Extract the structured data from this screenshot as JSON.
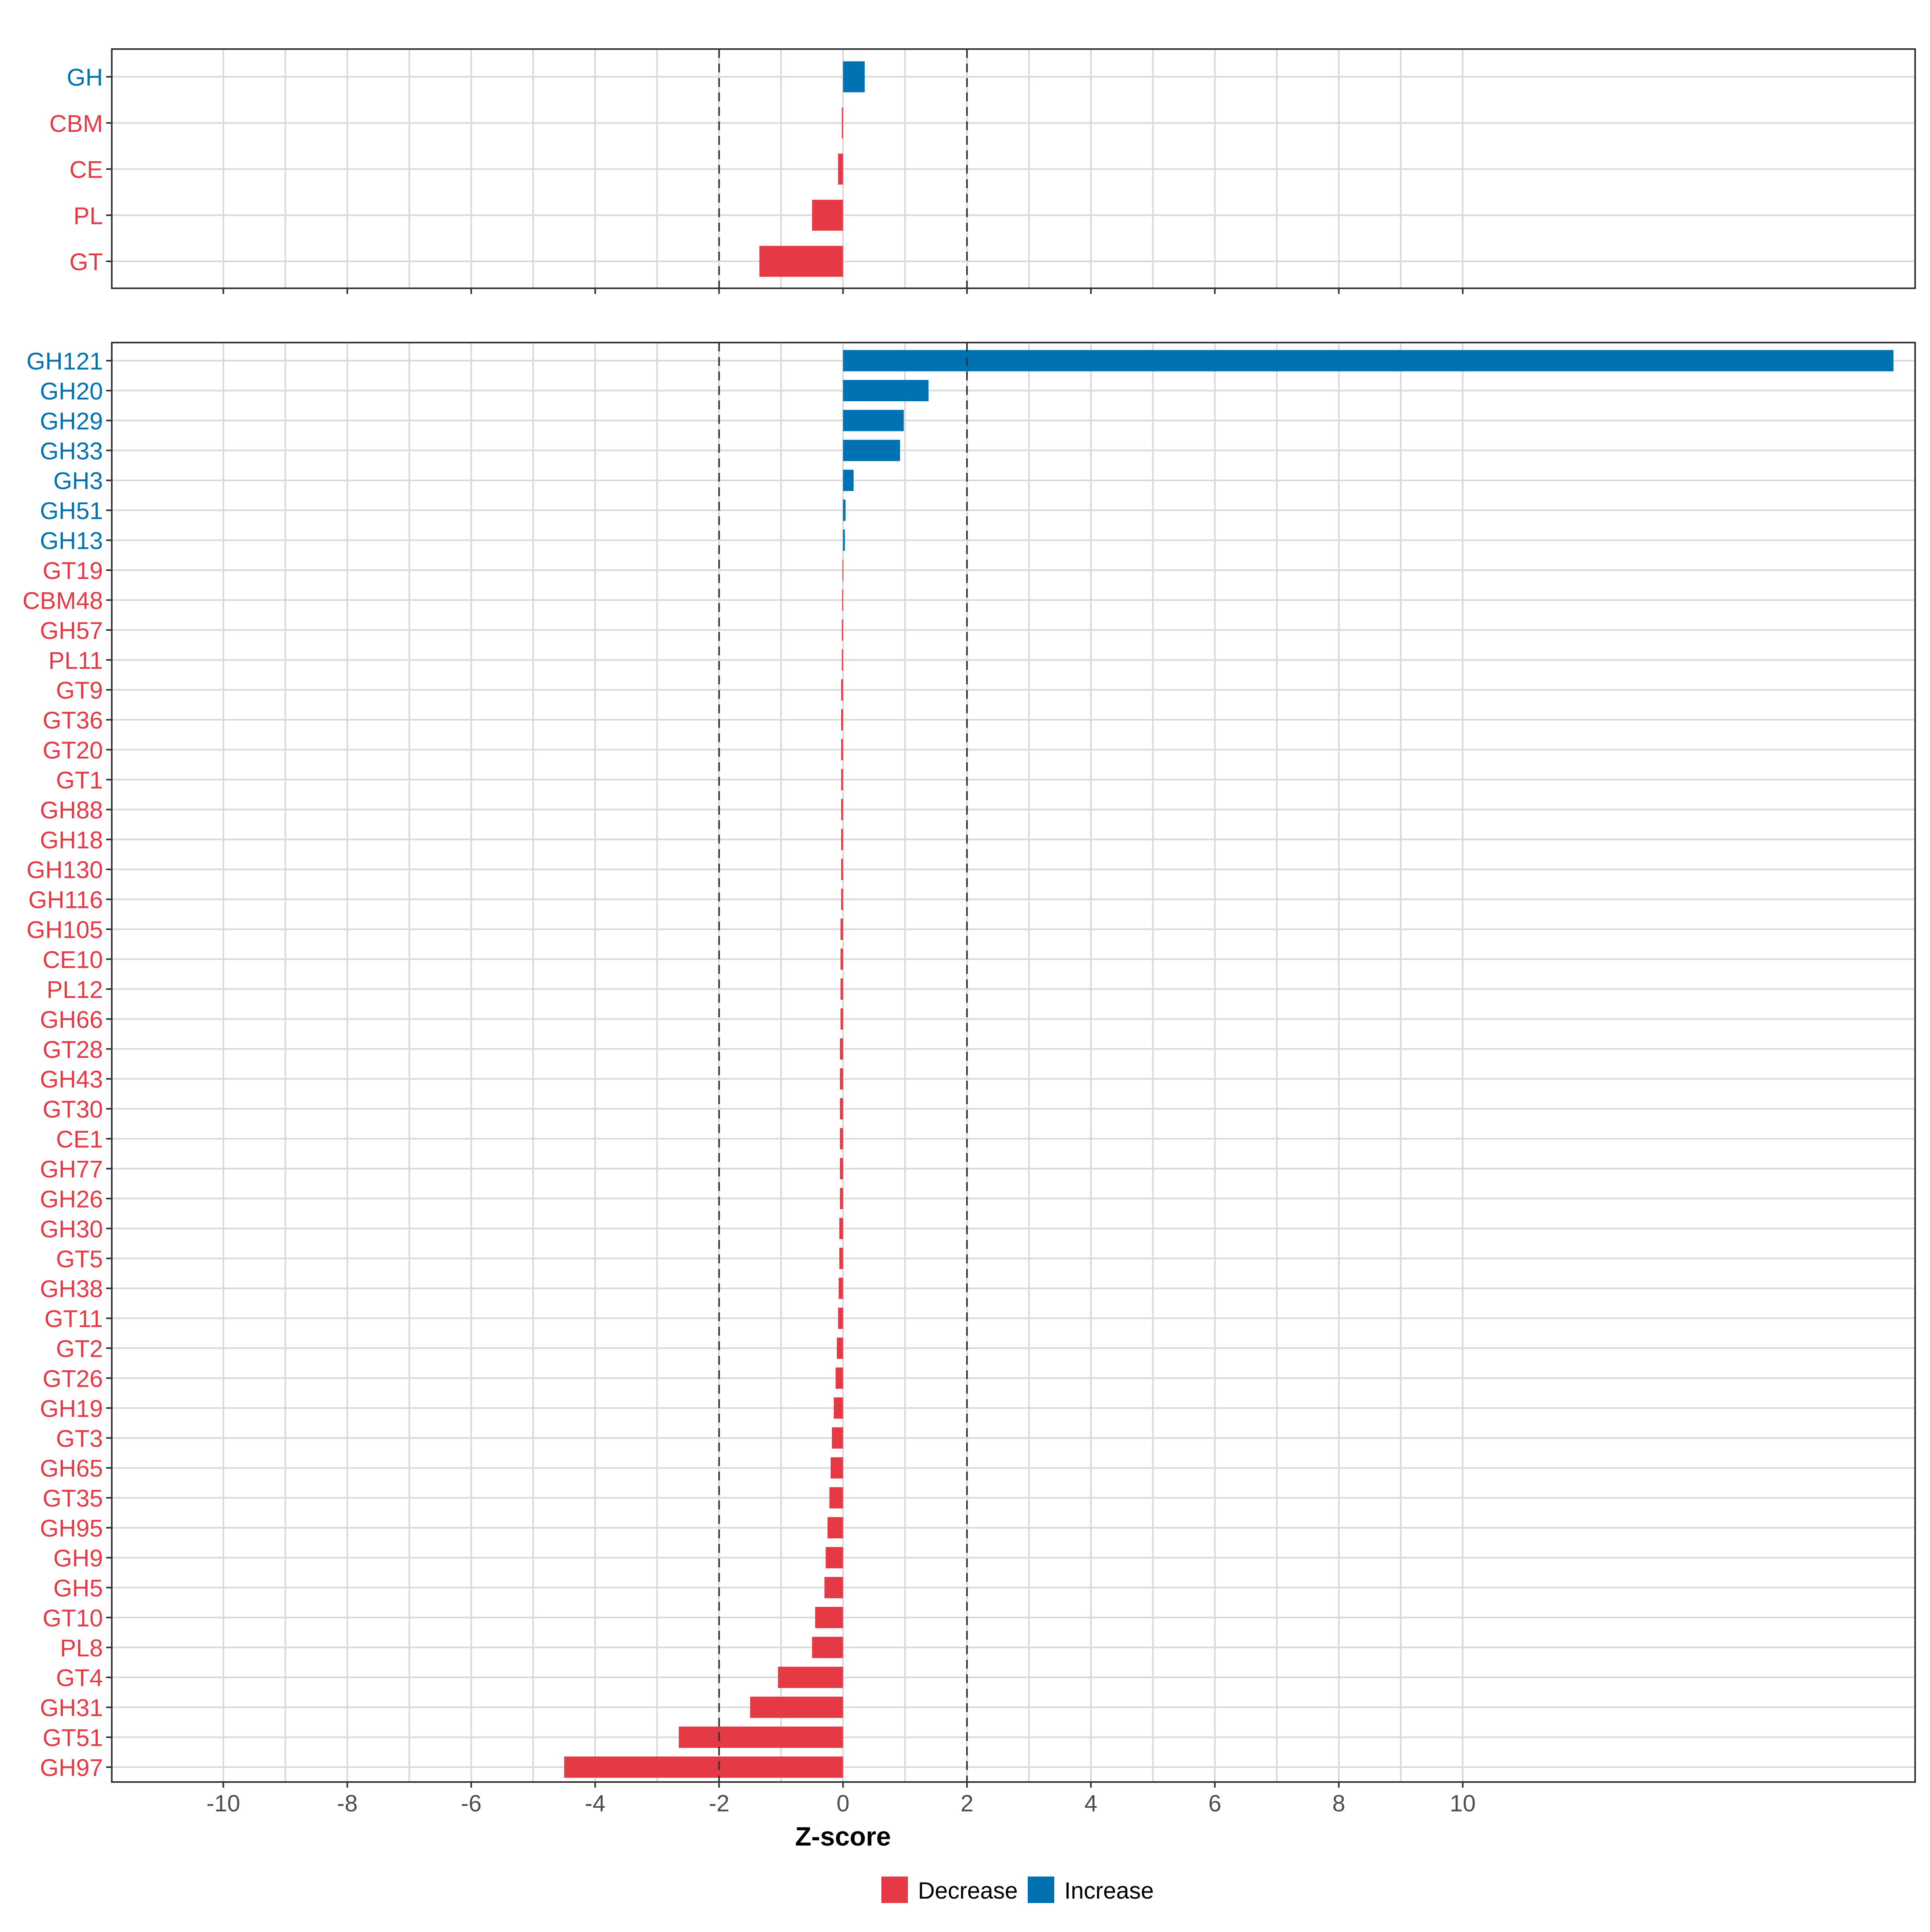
{
  "colors": {
    "decrease": "#E63946",
    "increase": "#0072B2",
    "grid": "#D9D9D9",
    "panel_border": "#333333",
    "threshold_line": "#333333",
    "tick_text": "#4D4D4D"
  },
  "chart_data": [
    {
      "type": "bar",
      "orientation": "horizontal",
      "panel": "top",
      "categories": [
        "GH",
        "CBM",
        "CE",
        "PL",
        "GT"
      ],
      "values": [
        0.35,
        -0.02,
        -0.08,
        -0.5,
        -1.35
      ],
      "direction": [
        "Increase",
        "Decrease",
        "Decrease",
        "Decrease",
        "Decrease"
      ],
      "xlim": [
        -11.8,
        17.3
      ],
      "thresholds": [
        -2,
        2
      ],
      "grid": true
    },
    {
      "type": "bar",
      "orientation": "horizontal",
      "panel": "bottom",
      "categories": [
        "GH121",
        "GH20",
        "GH29",
        "GH33",
        "GH3",
        "GH51",
        "GH13",
        "GT19",
        "CBM48",
        "GH57",
        "PL11",
        "GT9",
        "GT36",
        "GT20",
        "GT1",
        "GH88",
        "GH18",
        "GH130",
        "GH116",
        "GH105",
        "CE10",
        "PL12",
        "GH66",
        "GT28",
        "GH43",
        "GT30",
        "CE1",
        "GH77",
        "GH26",
        "GH30",
        "GT5",
        "GH38",
        "GT11",
        "GT2",
        "GT26",
        "GH19",
        "GT3",
        "GH65",
        "GT35",
        "GH95",
        "GH9",
        "GH5",
        "GT10",
        "PL8",
        "GT4",
        "GH31",
        "GT51",
        "GH97"
      ],
      "values": [
        16.95,
        1.38,
        0.98,
        0.92,
        0.17,
        0.04,
        0.03,
        -0.01,
        -0.015,
        -0.02,
        -0.02,
        -0.03,
        -0.03,
        -0.03,
        -0.03,
        -0.03,
        -0.03,
        -0.03,
        -0.03,
        -0.04,
        -0.04,
        -0.04,
        -0.04,
        -0.05,
        -0.05,
        -0.05,
        -0.05,
        -0.05,
        -0.05,
        -0.06,
        -0.06,
        -0.07,
        -0.08,
        -0.1,
        -0.12,
        -0.15,
        -0.18,
        -0.2,
        -0.22,
        -0.25,
        -0.28,
        -0.3,
        -0.45,
        -0.5,
        -1.05,
        -1.5,
        -2.65,
        -4.5
      ],
      "direction": [
        "Increase",
        "Increase",
        "Increase",
        "Increase",
        "Increase",
        "Increase",
        "Increase",
        "Decrease",
        "Decrease",
        "Decrease",
        "Decrease",
        "Decrease",
        "Decrease",
        "Decrease",
        "Decrease",
        "Decrease",
        "Decrease",
        "Decrease",
        "Decrease",
        "Decrease",
        "Decrease",
        "Decrease",
        "Decrease",
        "Decrease",
        "Decrease",
        "Decrease",
        "Decrease",
        "Decrease",
        "Decrease",
        "Decrease",
        "Decrease",
        "Decrease",
        "Decrease",
        "Decrease",
        "Decrease",
        "Decrease",
        "Decrease",
        "Decrease",
        "Decrease",
        "Decrease",
        "Decrease",
        "Decrease",
        "Decrease",
        "Decrease",
        "Decrease",
        "Decrease",
        "Decrease",
        "Decrease"
      ],
      "xlim": [
        -11.8,
        17.3
      ],
      "xticks": [
        -10,
        -8,
        -6,
        -4,
        -2,
        0,
        2,
        4,
        6,
        8,
        10
      ],
      "xtick_labels": [
        "-10",
        "-8",
        "-6",
        "-4",
        "-2",
        "0",
        "2",
        "4",
        "6",
        "8",
        "10"
      ],
      "thresholds": [
        -2,
        2
      ],
      "xlabel": "Z-score",
      "grid": true
    }
  ],
  "legend": {
    "position": "bottom",
    "items": [
      {
        "label": "Decrease",
        "color": "#E63946"
      },
      {
        "label": "Increase",
        "color": "#0072B2"
      }
    ]
  }
}
